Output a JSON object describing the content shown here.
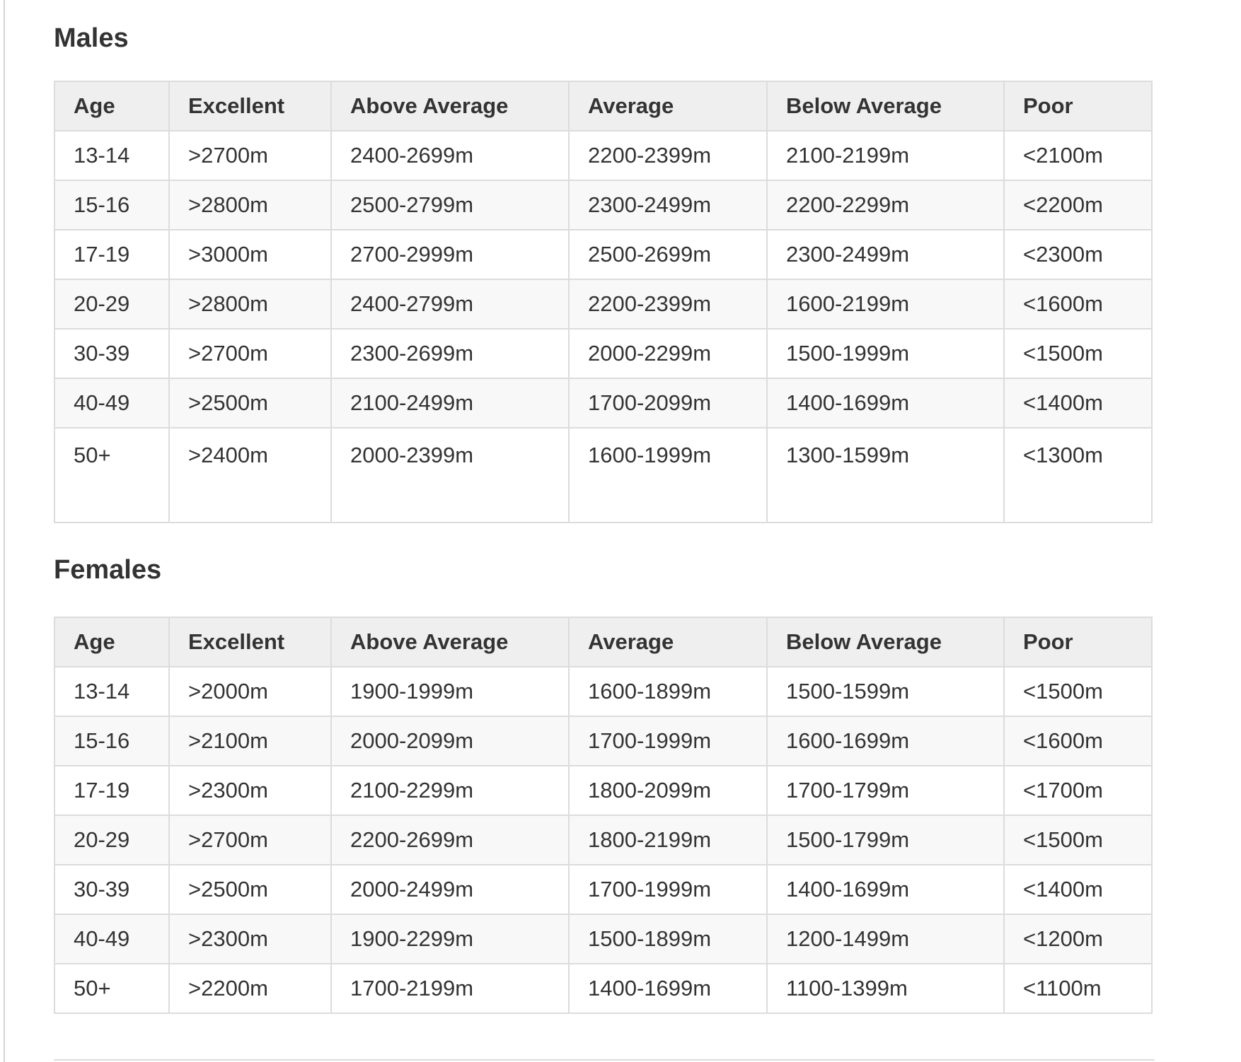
{
  "columns": [
    "Age",
    "Excellent",
    "Above Average",
    "Average",
    "Below Average",
    "Poor"
  ],
  "males": {
    "title": "Males",
    "rows": [
      [
        "13-14",
        ">2700m",
        "2400-2699m",
        "2200-2399m",
        "2100-2199m",
        "<2100m"
      ],
      [
        "15-16",
        ">2800m",
        "2500-2799m",
        "2300-2499m",
        "2200-2299m",
        "<2200m"
      ],
      [
        "17-19",
        ">3000m",
        "2700-2999m",
        "2500-2699m",
        "2300-2499m",
        "<2300m"
      ],
      [
        "20-29",
        ">2800m",
        "2400-2799m",
        "2200-2399m",
        "1600-2199m",
        "<1600m"
      ],
      [
        "30-39",
        ">2700m",
        "2300-2699m",
        "2000-2299m",
        "1500-1999m",
        "<1500m"
      ],
      [
        "40-49",
        ">2500m",
        "2100-2499m",
        "1700-2099m",
        "1400-1699m",
        "<1400m"
      ],
      [
        "50+",
        ">2400m",
        "2000-2399m",
        "1600-1999m",
        "1300-1599m",
        "<1300m"
      ]
    ]
  },
  "females": {
    "title": "Females",
    "rows": [
      [
        "13-14",
        ">2000m",
        "1900-1999m",
        "1600-1899m",
        "1500-1599m",
        "<1500m"
      ],
      [
        "15-16",
        ">2100m",
        "2000-2099m",
        "1700-1999m",
        "1600-1699m",
        "<1600m"
      ],
      [
        "17-19",
        ">2300m",
        "2100-2299m",
        "1800-2099m",
        "1700-1799m",
        "<1700m"
      ],
      [
        "20-29",
        ">2700m",
        "2200-2699m",
        "1800-2199m",
        "1500-1799m",
        "<1500m"
      ],
      [
        "30-39",
        ">2500m",
        "2000-2499m",
        "1700-1999m",
        "1400-1699m",
        "<1400m"
      ],
      [
        "40-49",
        ">2300m",
        "1900-2299m",
        "1500-1899m",
        "1200-1499m",
        "<1200m"
      ],
      [
        "50+",
        ">2200m",
        "1700-2199m",
        "1400-1699m",
        "1100-1399m",
        "<1100m"
      ]
    ]
  }
}
